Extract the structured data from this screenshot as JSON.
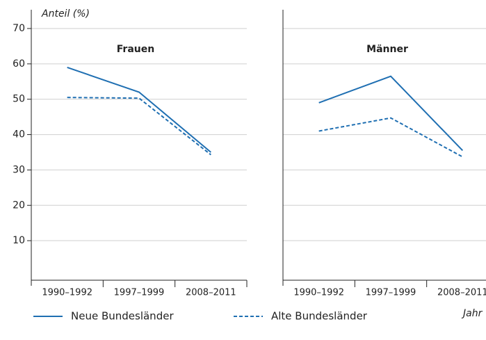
{
  "chart_data": [
    {
      "type": "line",
      "title": "Frauen",
      "y_label": "Anteil (%)",
      "categories": [
        "1990–1992",
        "1997–1999",
        "2008–2011"
      ],
      "series": [
        {
          "name": "Neue Bundesländer",
          "color": "#1f6fb2",
          "line_style": "solid",
          "values": [
            59,
            52,
            35
          ]
        },
        {
          "name": "Alte Bundesländer",
          "color": "#1f6fb2",
          "line_style": "dashed",
          "values": [
            50.5,
            50.3,
            34.3
          ]
        }
      ],
      "ylim": [
        0,
        70
      ],
      "yticks": [
        10,
        20,
        30,
        40,
        50,
        60,
        70
      ],
      "grid": true
    },
    {
      "type": "line",
      "title": "Männer",
      "x_label": "Jahr",
      "categories": [
        "1990–1992",
        "1997–1999",
        "2008–2011"
      ],
      "series": [
        {
          "name": "Neue Bundesländer",
          "color": "#1f6fb2",
          "line_style": "solid",
          "values": [
            49,
            56.5,
            35.5
          ]
        },
        {
          "name": "Alte Bundesländer",
          "color": "#1f6fb2",
          "line_style": "dashed",
          "values": [
            41,
            44.7,
            33.7
          ]
        }
      ],
      "ylim": [
        0,
        70
      ],
      "yticks": [
        10,
        20,
        30,
        40,
        50,
        60,
        70
      ],
      "grid": true
    }
  ]
}
